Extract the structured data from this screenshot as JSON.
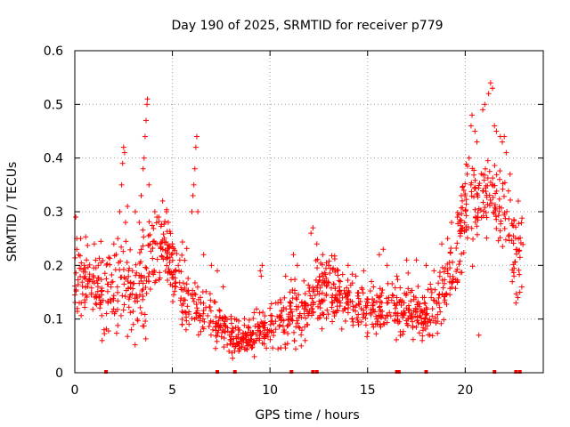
{
  "chart_data": {
    "type": "scatter",
    "title": "Day 190 of 2025, SRMTID for receiver p779",
    "xlabel": "GPS time / hours",
    "ylabel": "SRMTID / TECUs",
    "xlim": [
      0,
      24
    ],
    "ylim": [
      0,
      0.6
    ],
    "x_ticks": [
      0,
      5,
      10,
      15,
      20
    ],
    "x_tick_labels": [
      "0",
      "5",
      "10",
      "15",
      "20"
    ],
    "y_ticks": [
      0,
      0.1,
      0.2,
      0.3,
      0.4,
      0.5,
      0.6
    ],
    "y_tick_labels": [
      "0",
      "0.1",
      "0.2",
      "0.3",
      "0.4",
      "0.5",
      "0.6"
    ],
    "grid": true,
    "marker": "plus",
    "color": "#ff0000",
    "envelope": {
      "x": [
        0,
        0.5,
        1.0,
        1.5,
        2.0,
        2.5,
        3.0,
        3.5,
        4.0,
        4.5,
        5.0,
        5.5,
        6.0,
        6.5,
        7.0,
        7.5,
        8.0,
        8.5,
        9.0,
        9.5,
        10.0,
        10.5,
        11.0,
        11.5,
        12.0,
        12.5,
        13.0,
        13.5,
        14.0,
        14.5,
        15.0,
        15.5,
        16.0,
        16.5,
        17.0,
        17.5,
        18.0,
        18.5,
        19.0,
        19.5,
        20.0,
        20.5,
        21.0,
        21.5,
        22.0,
        22.5,
        23.0
      ],
      "median": [
        0.18,
        0.17,
        0.16,
        0.15,
        0.16,
        0.17,
        0.15,
        0.17,
        0.2,
        0.25,
        0.2,
        0.16,
        0.14,
        0.12,
        0.1,
        0.09,
        0.07,
        0.065,
        0.07,
        0.075,
        0.09,
        0.1,
        0.11,
        0.11,
        0.12,
        0.16,
        0.17,
        0.15,
        0.13,
        0.12,
        0.12,
        0.12,
        0.13,
        0.12,
        0.11,
        0.12,
        0.1,
        0.12,
        0.16,
        0.2,
        0.3,
        0.32,
        0.31,
        0.33,
        0.3,
        0.23,
        0.22
      ],
      "spread": [
        0.05,
        0.05,
        0.045,
        0.045,
        0.05,
        0.06,
        0.055,
        0.06,
        0.06,
        0.05,
        0.05,
        0.05,
        0.045,
        0.04,
        0.035,
        0.03,
        0.025,
        0.02,
        0.02,
        0.025,
        0.03,
        0.035,
        0.04,
        0.04,
        0.04,
        0.045,
        0.05,
        0.045,
        0.04,
        0.035,
        0.035,
        0.035,
        0.035,
        0.035,
        0.035,
        0.035,
        0.035,
        0.04,
        0.05,
        0.06,
        0.07,
        0.07,
        0.07,
        0.07,
        0.07,
        0.06,
        0.06
      ]
    },
    "points": [
      [
        0.05,
        0.29
      ],
      [
        0.1,
        0.25
      ],
      [
        0.2,
        0.22
      ],
      [
        0.3,
        0.25
      ],
      [
        0.6,
        0.21
      ],
      [
        1.0,
        0.24
      ],
      [
        1.2,
        0.2
      ],
      [
        1.4,
        0.06
      ],
      [
        1.5,
        0.08
      ],
      [
        1.7,
        0.13
      ],
      [
        2.0,
        0.24
      ],
      [
        2.2,
        0.25
      ],
      [
        2.3,
        0.3
      ],
      [
        2.4,
        0.35
      ],
      [
        2.45,
        0.39
      ],
      [
        2.5,
        0.42
      ],
      [
        2.55,
        0.41
      ],
      [
        2.6,
        0.28
      ],
      [
        2.7,
        0.31
      ],
      [
        2.9,
        0.08
      ],
      [
        3.0,
        0.09
      ],
      [
        3.1,
        0.3
      ],
      [
        3.3,
        0.28
      ],
      [
        3.4,
        0.33
      ],
      [
        3.5,
        0.38
      ],
      [
        3.55,
        0.4
      ],
      [
        3.6,
        0.44
      ],
      [
        3.65,
        0.47
      ],
      [
        3.7,
        0.5
      ],
      [
        3.72,
        0.51
      ],
      [
        3.8,
        0.35
      ],
      [
        4.1,
        0.3
      ],
      [
        4.3,
        0.29
      ],
      [
        4.5,
        0.32
      ],
      [
        4.7,
        0.3
      ],
      [
        5.0,
        0.24
      ],
      [
        5.3,
        0.2
      ],
      [
        5.5,
        0.09
      ],
      [
        5.7,
        0.08
      ],
      [
        6.0,
        0.3
      ],
      [
        6.05,
        0.33
      ],
      [
        6.1,
        0.35
      ],
      [
        6.15,
        0.38
      ],
      [
        6.2,
        0.42
      ],
      [
        6.25,
        0.44
      ],
      [
        6.3,
        0.3
      ],
      [
        6.6,
        0.22
      ],
      [
        7.0,
        0.2
      ],
      [
        7.3,
        0.19
      ],
      [
        7.6,
        0.16
      ],
      [
        7.9,
        0.04
      ],
      [
        8.2,
        0.1
      ],
      [
        8.4,
        0.04
      ],
      [
        8.9,
        0.06
      ],
      [
        9.2,
        0.03
      ],
      [
        9.5,
        0.19
      ],
      [
        9.6,
        0.2
      ],
      [
        9.55,
        0.18
      ],
      [
        10.0,
        0.12
      ],
      [
        10.3,
        0.13
      ],
      [
        10.8,
        0.18
      ],
      [
        11.2,
        0.22
      ],
      [
        11.4,
        0.2
      ],
      [
        11.6,
        0.05
      ],
      [
        11.8,
        0.06
      ],
      [
        12.1,
        0.26
      ],
      [
        12.2,
        0.27
      ],
      [
        12.4,
        0.24
      ],
      [
        12.7,
        0.22
      ],
      [
        13.0,
        0.2
      ],
      [
        13.6,
        0.17
      ],
      [
        14.0,
        0.2
      ],
      [
        14.4,
        0.18
      ],
      [
        14.8,
        0.19
      ],
      [
        15.3,
        0.16
      ],
      [
        15.6,
        0.22
      ],
      [
        15.8,
        0.23
      ],
      [
        16.0,
        0.2
      ],
      [
        16.5,
        0.18
      ],
      [
        17.0,
        0.21
      ],
      [
        17.2,
        0.15
      ],
      [
        17.5,
        0.21
      ],
      [
        17.8,
        0.06
      ],
      [
        18.0,
        0.2
      ],
      [
        18.4,
        0.19
      ],
      [
        18.8,
        0.24
      ],
      [
        19.1,
        0.25
      ],
      [
        19.3,
        0.28
      ],
      [
        19.6,
        0.29
      ],
      [
        19.8,
        0.33
      ],
      [
        20.1,
        0.37
      ],
      [
        20.2,
        0.4
      ],
      [
        20.3,
        0.46
      ],
      [
        20.35,
        0.48
      ],
      [
        20.5,
        0.45
      ],
      [
        20.6,
        0.43
      ],
      [
        20.7,
        0.07
      ],
      [
        20.9,
        0.49
      ],
      [
        21.0,
        0.5
      ],
      [
        21.2,
        0.52
      ],
      [
        21.3,
        0.54
      ],
      [
        21.4,
        0.53
      ],
      [
        21.5,
        0.46
      ],
      [
        21.6,
        0.45
      ],
      [
        21.8,
        0.44
      ],
      [
        21.9,
        0.43
      ],
      [
        22.0,
        0.44
      ],
      [
        22.1,
        0.41
      ],
      [
        22.3,
        0.37
      ],
      [
        22.5,
        0.18
      ],
      [
        22.6,
        0.13
      ],
      [
        22.7,
        0.14
      ],
      [
        22.8,
        0.15
      ],
      [
        22.9,
        0.16
      ]
    ],
    "baseline_markers_x": [
      1.6,
      7.3,
      8.2,
      11.1,
      12.2,
      12.4,
      16.5,
      16.6,
      18.0,
      21.5,
      22.6,
      22.8
    ]
  }
}
